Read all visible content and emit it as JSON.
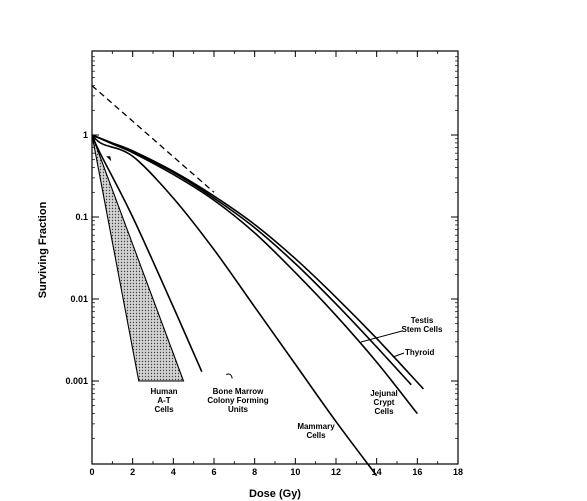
{
  "chart_data": {
    "type": "line",
    "xlabel": "Dose (Gy)",
    "ylabel": "Surviving Fraction",
    "xlim": [
      0,
      18
    ],
    "ylim": [
      0.0001,
      10
    ],
    "yscale": "log",
    "x_ticks": [
      "0",
      "2",
      "4",
      "6",
      "8",
      "10",
      "12",
      "14",
      "16",
      "18"
    ],
    "y_ticks": [
      {
        "value": 1,
        "label": "1"
      },
      {
        "value": 0.1,
        "label": "0.1"
      },
      {
        "value": 0.01,
        "label": "0.01"
      },
      {
        "value": 0.001,
        "label": "0.001"
      }
    ],
    "band": {
      "name": "Human A-T Cells",
      "upper": {
        "x": [
          0,
          4.5
        ],
        "y": [
          1,
          0.001
        ]
      },
      "lower": {
        "x": [
          0,
          2.3
        ],
        "y": [
          1,
          0.001
        ]
      },
      "fill": "stippled gray"
    },
    "series": [
      {
        "name": "Bone Marrow Colony Forming Units",
        "x": [
          0,
          0.4,
          2,
          4,
          5.4
        ],
        "y": [
          1,
          0.6,
          0.1,
          0.008,
          0.0013
        ]
      },
      {
        "name": "Mammary Cells",
        "x": [
          0,
          0.5,
          2,
          4,
          6,
          8,
          10,
          12,
          14
        ],
        "y": [
          1,
          0.78,
          0.55,
          0.17,
          0.04,
          0.008,
          0.0016,
          0.00032,
          7e-05
        ]
      },
      {
        "name": "Jejunal Crypt Cells",
        "x": [
          0,
          1,
          2,
          4,
          6,
          8,
          10,
          12,
          14,
          16
        ],
        "y": [
          1,
          0.78,
          0.61,
          0.33,
          0.16,
          0.064,
          0.021,
          0.0063,
          0.0017,
          0.0004
        ]
      },
      {
        "name": "Thyroid",
        "x": [
          0,
          1,
          2,
          4,
          6,
          8,
          10,
          12,
          14,
          16.3
        ],
        "y": [
          1,
          0.8,
          0.64,
          0.36,
          0.18,
          0.081,
          0.031,
          0.0105,
          0.0033,
          0.0008
        ]
      },
      {
        "name": "Testis Stem Cells",
        "x": [
          0,
          1,
          2,
          4,
          6,
          8,
          10,
          12,
          14,
          15.7
        ],
        "y": [
          1,
          0.79,
          0.62,
          0.35,
          0.17,
          0.074,
          0.027,
          0.0087,
          0.0026,
          0.0009
        ]
      }
    ],
    "extrapolation": {
      "x": [
        0,
        6
      ],
      "y": [
        4,
        0.2
      ],
      "style": "dashed"
    },
    "labels": {
      "at": [
        "Human",
        "A-T",
        "Cells"
      ],
      "marrow": [
        "Bone Marrow",
        "Colony Forming",
        "Units"
      ],
      "mammary": [
        "Mammary",
        "Cells"
      ],
      "jejunal": [
        "Jejunal",
        "Crypt",
        "Cells"
      ],
      "testis": [
        "Testis",
        "Stem Cells"
      ],
      "thyroid": [
        "Thyroid"
      ]
    }
  }
}
